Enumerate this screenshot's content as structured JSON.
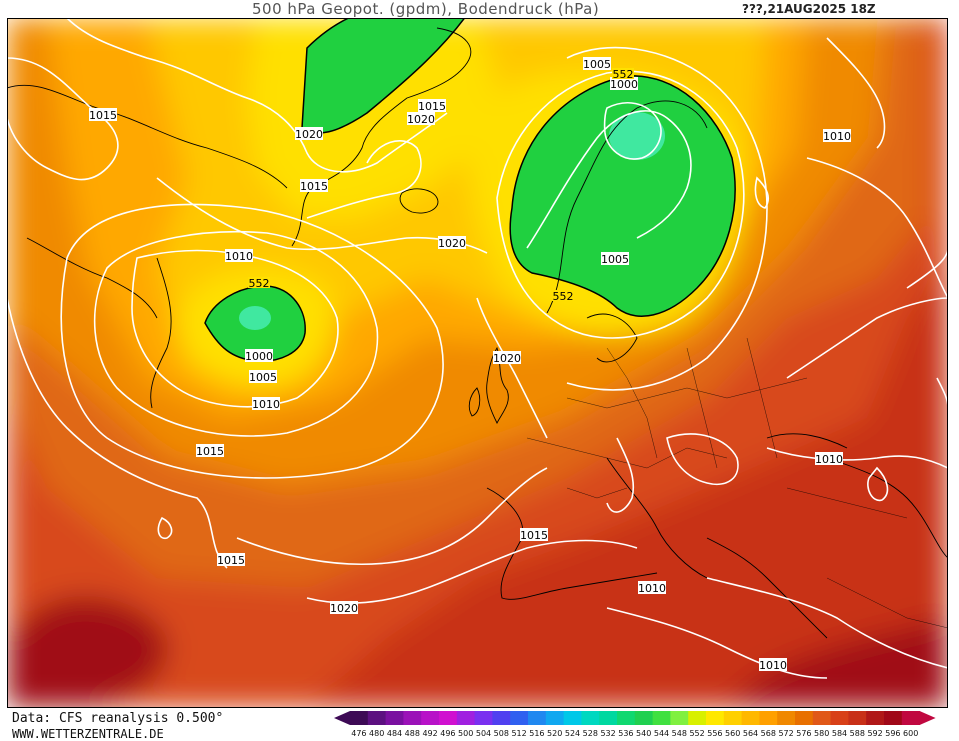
{
  "header": {
    "title": "500 hPa Geopot. (gpdm), Bodendruck (hPa)",
    "datetime": "???,21AUG2025 18Z"
  },
  "footer": {
    "source": "Data: CFS reanalysis 0.500°",
    "website": "WWW.WETTERZENTRALE.DE"
  },
  "legend": {
    "values": [
      "476",
      "480",
      "484",
      "488",
      "492",
      "496",
      "500",
      "504",
      "508",
      "512",
      "516",
      "520",
      "524",
      "528",
      "532",
      "536",
      "540",
      "544",
      "548",
      "552",
      "556",
      "560",
      "564",
      "568",
      "572",
      "576",
      "580",
      "584",
      "588",
      "592",
      "596",
      "600"
    ],
    "colors": [
      "#3d0a55",
      "#5c1080",
      "#7a10a0",
      "#9b12b8",
      "#b812c8",
      "#d010d0",
      "#a020e0",
      "#7a30f0",
      "#5040f0",
      "#3060f0",
      "#2088f0",
      "#10a8f0",
      "#00c8e8",
      "#00d8c0",
      "#00d8a0",
      "#10d870",
      "#20d050",
      "#40e040",
      "#80f040",
      "#d8f000",
      "#ffe800",
      "#ffd000",
      "#ffb800",
      "#ffa000",
      "#f08800",
      "#e87000",
      "#e05818",
      "#d84018",
      "#c83018",
      "#b01818",
      "#a00818",
      "#c00840"
    ]
  },
  "isobars": [
    {
      "label": "1015"
    },
    {
      "label": "1020"
    },
    {
      "label": "1015"
    },
    {
      "label": "1020"
    },
    {
      "label": "1015"
    },
    {
      "label": "1005"
    },
    {
      "label": "1000"
    },
    {
      "label": "1010"
    },
    {
      "label": "1020"
    },
    {
      "label": "1005"
    },
    {
      "label": "1010"
    },
    {
      "label": "1000"
    },
    {
      "label": "1005"
    },
    {
      "label": "1010"
    },
    {
      "label": "1015"
    },
    {
      "label": "1020"
    },
    {
      "label": "1010"
    },
    {
      "label": "1015"
    },
    {
      "label": "1015"
    },
    {
      "label": "1020"
    },
    {
      "label": "1010"
    },
    {
      "label": "1010"
    }
  ],
  "geopotential_labels": [
    {
      "label": "552"
    },
    {
      "label": "552"
    },
    {
      "label": "552"
    }
  ]
}
